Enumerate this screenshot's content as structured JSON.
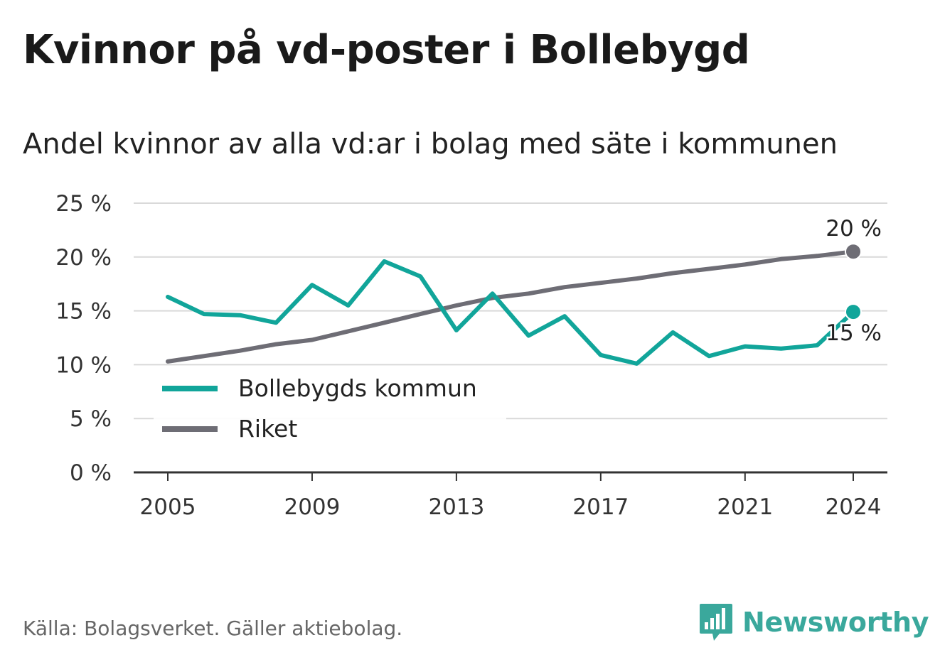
{
  "header": {
    "title": "Kvinnor på vd-poster i Bollebygd",
    "subtitle": "Andel kvinnor av alla vd:ar i bolag med säte i kommunen"
  },
  "footer": {
    "source": "Källa: Bolagsverket. Gäller aktiebolag.",
    "brand": "Newsworthy",
    "brand_icon": "bar-chart-logo-icon"
  },
  "colors": {
    "bollebygd": "#11a59a",
    "riket": "#6e6d75",
    "grid": "#d9d9d9",
    "axis": "#333333",
    "brand": "#3aa89c"
  },
  "chart_data": {
    "type": "line",
    "ylim": [
      0,
      25
    ],
    "xlim": [
      2005,
      2024
    ],
    "y_ticks": [
      {
        "value": 0,
        "label": "0 %"
      },
      {
        "value": 5,
        "label": "5 %"
      },
      {
        "value": 10,
        "label": "10 %"
      },
      {
        "value": 15,
        "label": "15 %"
      },
      {
        "value": 20,
        "label": "20 %"
      },
      {
        "value": 25,
        "label": "25 %"
      }
    ],
    "x_ticks": [
      {
        "value": 2005,
        "label": "2005"
      },
      {
        "value": 2009,
        "label": "2009"
      },
      {
        "value": 2013,
        "label": "2013"
      },
      {
        "value": 2017,
        "label": "2017"
      },
      {
        "value": 2021,
        "label": "2021"
      },
      {
        "value": 2024,
        "label": "2024"
      }
    ],
    "grid": true,
    "legend_position": "bottom-left",
    "x": [
      2005,
      2006,
      2007,
      2008,
      2009,
      2010,
      2011,
      2012,
      2013,
      2014,
      2015,
      2016,
      2017,
      2018,
      2019,
      2020,
      2021,
      2022,
      2023,
      2024
    ],
    "series": [
      {
        "name": "Bollebygds kommun",
        "color": "#11a59a",
        "values": [
          16.3,
          14.7,
          14.6,
          13.9,
          17.4,
          15.5,
          19.6,
          18.2,
          13.2,
          16.6,
          12.7,
          14.5,
          10.9,
          10.1,
          13.0,
          10.8,
          11.7,
          11.5,
          11.8,
          14.9
        ],
        "end_label": "15 %"
      },
      {
        "name": "Riket",
        "color": "#6e6d75",
        "values": [
          10.3,
          10.8,
          11.3,
          11.9,
          12.3,
          13.1,
          13.9,
          14.7,
          15.5,
          16.2,
          16.6,
          17.2,
          17.6,
          18.0,
          18.5,
          18.9,
          19.3,
          19.8,
          20.1,
          20.5
        ],
        "end_label": "20 %"
      }
    ]
  }
}
